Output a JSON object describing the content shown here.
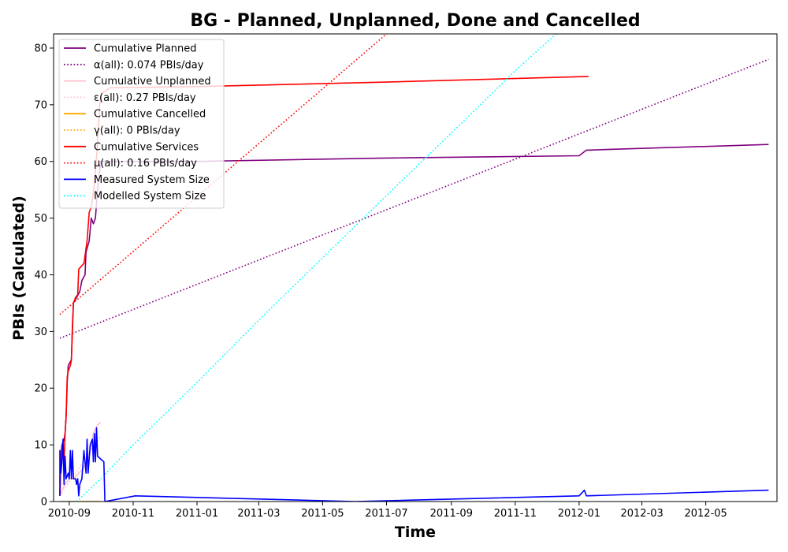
{
  "chart_data": {
    "type": "line",
    "title": "BG - Planned, Unplanned, Done  and Cancelled",
    "xlabel": "Time",
    "ylabel": "PBIs (Calculated)",
    "xlim": [
      "2010-08-17",
      "2012-07-08"
    ],
    "ylim": [
      0,
      82.5
    ],
    "x_ticks": [
      "2010-09",
      "2010-11",
      "2011-01",
      "2011-03",
      "2011-05",
      "2011-07",
      "2011-09",
      "2011-11",
      "2012-01",
      "2012-03",
      "2012-05"
    ],
    "y_ticks": [
      0,
      10,
      20,
      30,
      40,
      50,
      60,
      70,
      80
    ],
    "legend_position": "upper-left",
    "grid": false,
    "series": [
      {
        "name": "Cumulative Planned",
        "color": "#800080",
        "style": "solid",
        "points": [
          [
            "2010-08-23",
            1
          ],
          [
            "2010-08-24",
            8
          ],
          [
            "2010-08-25",
            10
          ],
          [
            "2010-08-27",
            11
          ],
          [
            "2010-08-28",
            12
          ],
          [
            "2010-08-29",
            15
          ],
          [
            "2010-08-30",
            21
          ],
          [
            "2010-08-31",
            24
          ],
          [
            "2010-09-03",
            25
          ],
          [
            "2010-09-04",
            31
          ],
          [
            "2010-09-05",
            35
          ],
          [
            "2010-09-08",
            36
          ],
          [
            "2010-09-11",
            37
          ],
          [
            "2010-09-13",
            39
          ],
          [
            "2010-09-16",
            40
          ],
          [
            "2010-09-17",
            44
          ],
          [
            "2010-09-20",
            46
          ],
          [
            "2010-09-22",
            50
          ],
          [
            "2010-09-24",
            49
          ],
          [
            "2010-09-26",
            50
          ],
          [
            "2010-09-28",
            55
          ],
          [
            "2010-10-01",
            60
          ],
          [
            "2011-01-01",
            60
          ],
          [
            "2011-07-01",
            60.6
          ],
          [
            "2012-01-01",
            61
          ],
          [
            "2012-01-08",
            62
          ],
          [
            "2012-06-30",
            63
          ]
        ]
      },
      {
        "name": "α(all): 0.074 PBIs/day",
        "color": "#800080",
        "style": "dotted",
        "points": [
          [
            "2010-08-23",
            28.8
          ],
          [
            "2012-06-30",
            78
          ]
        ]
      },
      {
        "name": "Cumulative Unplanned",
        "color": "#ffc0cb",
        "style": "solid",
        "points": [
          [
            "2010-08-23",
            1
          ],
          [
            "2010-08-25",
            2
          ],
          [
            "2010-08-28",
            3
          ],
          [
            "2010-09-01",
            4
          ],
          [
            "2010-09-05",
            4
          ],
          [
            "2010-09-10",
            5
          ],
          [
            "2010-09-15",
            6
          ],
          [
            "2010-09-20",
            8
          ],
          [
            "2010-09-24",
            12
          ],
          [
            "2010-09-28",
            13.5
          ],
          [
            "2010-10-01",
            14
          ]
        ]
      },
      {
        "name": "ε(all): 0.27 PBIs/day",
        "color": "#ffc0cb",
        "style": "dotted",
        "points": [
          [
            "2010-08-23",
            1
          ],
          [
            "2010-10-01",
            11.5
          ]
        ]
      },
      {
        "name": "Cumulative Cancelled",
        "color": "#ffa500",
        "style": "solid",
        "points": [
          [
            "2010-08-23",
            0
          ],
          [
            "2010-10-01",
            0
          ]
        ]
      },
      {
        "name": "γ(all): 0 PBIs/day",
        "color": "#ffa500",
        "style": "dotted",
        "points": [
          [
            "2010-08-23",
            0
          ],
          [
            "2010-10-01",
            0
          ]
        ]
      },
      {
        "name": "Cumulative Services",
        "color": "#ff0000",
        "style": "solid",
        "points": [
          [
            "2010-08-23",
            1
          ],
          [
            "2010-08-24",
            8
          ],
          [
            "2010-08-26",
            10
          ],
          [
            "2010-08-27",
            7
          ],
          [
            "2010-08-28",
            12
          ],
          [
            "2010-08-29",
            15
          ],
          [
            "2010-08-30",
            22
          ],
          [
            "2010-08-31",
            23
          ],
          [
            "2010-09-02",
            24
          ],
          [
            "2010-09-03",
            25
          ],
          [
            "2010-09-04",
            30
          ],
          [
            "2010-09-05",
            35
          ],
          [
            "2010-09-07",
            36
          ],
          [
            "2010-09-09",
            36.5
          ],
          [
            "2010-09-10",
            41
          ],
          [
            "2010-09-15",
            42
          ],
          [
            "2010-09-18",
            46
          ],
          [
            "2010-09-20",
            51
          ],
          [
            "2010-09-22",
            52
          ],
          [
            "2010-09-25",
            56
          ],
          [
            "2010-09-28",
            63
          ],
          [
            "2010-09-30",
            70
          ],
          [
            "2010-10-02",
            72
          ],
          [
            "2010-10-10",
            73
          ],
          [
            "2011-01-01",
            73.2
          ],
          [
            "2011-07-01",
            74
          ],
          [
            "2012-01-10",
            75
          ]
        ]
      },
      {
        "name": "μ(all): 0.16 PBIs/day",
        "color": "#ff0000",
        "style": "dotted",
        "points": [
          [
            "2010-08-23",
            33
          ],
          [
            "2011-07-01",
            82.5
          ]
        ]
      },
      {
        "name": "Measured System Size",
        "color": "#0000ff",
        "style": "solid",
        "points": [
          [
            "2010-08-23",
            1
          ],
          [
            "2010-08-23",
            9
          ],
          [
            "2010-08-24",
            5
          ],
          [
            "2010-08-25",
            7
          ],
          [
            "2010-08-26",
            11
          ],
          [
            "2010-08-27",
            3
          ],
          [
            "2010-08-28",
            8
          ],
          [
            "2010-08-29",
            4
          ],
          [
            "2010-08-31",
            5
          ],
          [
            "2010-09-01",
            4
          ],
          [
            "2010-09-02",
            9
          ],
          [
            "2010-09-03",
            4
          ],
          [
            "2010-09-04",
            9
          ],
          [
            "2010-09-05",
            4
          ],
          [
            "2010-09-07",
            4
          ],
          [
            "2010-09-08",
            3
          ],
          [
            "2010-09-09",
            4
          ],
          [
            "2010-09-10",
            1
          ],
          [
            "2010-09-11",
            3
          ],
          [
            "2010-09-13",
            4
          ],
          [
            "2010-09-15",
            9
          ],
          [
            "2010-09-17",
            5
          ],
          [
            "2010-09-18",
            11
          ],
          [
            "2010-09-19",
            5
          ],
          [
            "2010-09-21",
            10
          ],
          [
            "2010-09-23",
            11
          ],
          [
            "2010-09-24",
            7
          ],
          [
            "2010-09-25",
            12
          ],
          [
            "2010-09-26",
            7
          ],
          [
            "2010-09-27",
            13
          ],
          [
            "2010-09-28",
            8
          ],
          [
            "2010-10-04",
            7
          ],
          [
            "2010-10-05",
            0
          ],
          [
            "2010-11-03",
            1
          ],
          [
            "2011-06-01",
            0
          ],
          [
            "2012-01-01",
            1
          ],
          [
            "2012-01-06",
            2
          ],
          [
            "2012-01-08",
            1
          ],
          [
            "2012-06-30",
            2
          ]
        ]
      },
      {
        "name": "Modelled System Size",
        "color": "#00ffff",
        "style": "dotted",
        "points": [
          [
            "2010-08-23",
            0
          ],
          [
            "2010-09-08",
            0
          ],
          [
            "2010-10-01",
            4
          ],
          [
            "2010-11-01",
            10
          ],
          [
            "2011-01-01",
            21
          ],
          [
            "2011-03-01",
            32
          ],
          [
            "2011-05-01",
            43
          ],
          [
            "2011-07-01",
            54
          ],
          [
            "2011-09-01",
            65
          ],
          [
            "2011-11-01",
            76
          ],
          [
            "2011-12-10",
            82.5
          ]
        ]
      }
    ]
  }
}
